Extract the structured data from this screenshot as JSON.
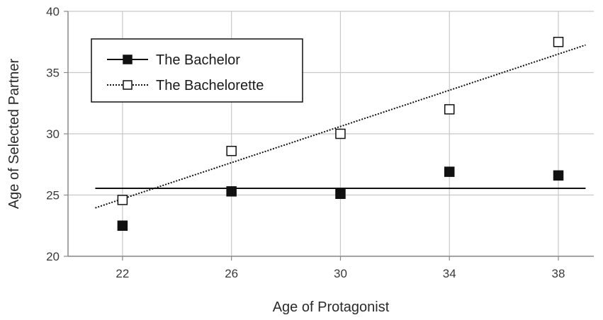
{
  "chart_data": {
    "type": "scatter",
    "xlabel": "Age of Protagonist",
    "ylabel": "Age of Selected Partner",
    "xlim": [
      20,
      39.3
    ],
    "ylim": [
      20,
      40
    ],
    "xticks": [
      22,
      26,
      30,
      34,
      38
    ],
    "yticks": [
      20,
      25,
      30,
      35,
      40
    ],
    "grid": true,
    "legend_position": "top-left",
    "series": [
      {
        "name": "The Bachelor",
        "marker": "filled-square",
        "color": "#111111",
        "x": [
          22,
          26,
          30,
          34,
          38
        ],
        "y": [
          22.5,
          25.3,
          25.1,
          26.9,
          26.6
        ],
        "trendline": {
          "style": "solid",
          "x": [
            21,
            39
          ],
          "y": [
            25.55,
            25.55
          ]
        }
      },
      {
        "name": "The Bachelorette",
        "marker": "open-square",
        "color": "#111111",
        "x": [
          22,
          26,
          30,
          34,
          38
        ],
        "y": [
          24.6,
          28.6,
          30.0,
          32.0,
          37.5
        ],
        "trendline": {
          "style": "dotted",
          "x": [
            21,
            39
          ],
          "y": [
            23.95,
            37.25
          ]
        }
      }
    ]
  }
}
